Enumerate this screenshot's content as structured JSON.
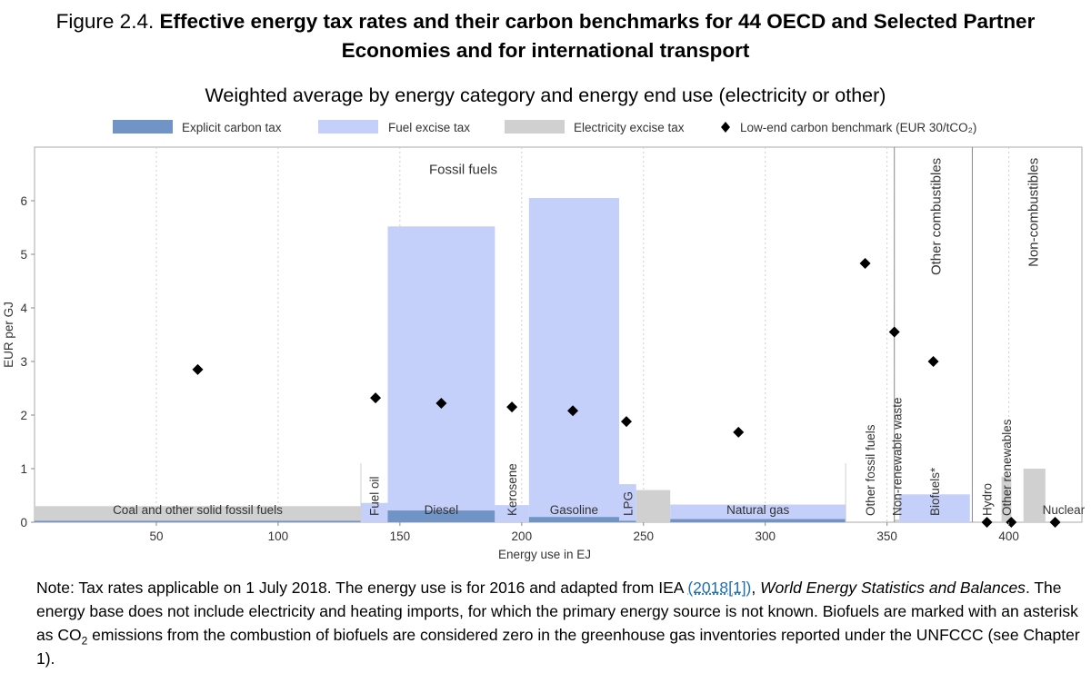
{
  "title": {
    "fig_label": "Figure 2.4.",
    "line1": "Effective energy tax rates and their carbon benchmarks for 44 OECD and Selected Partner",
    "line2": "Economies and for international transport"
  },
  "subtitle": "Weighted average by energy category and energy end use (electricity or other)",
  "colors": {
    "carbon": "#7094c6",
    "fuel": "#c4cffa",
    "elec": "#d0d0d0",
    "benchmark": "#000000",
    "frame": "#aaaaaa"
  },
  "chart_data": {
    "type": "bar",
    "xlabel": "Energy use in EJ",
    "ylabel": "EUR per GJ",
    "xlim": [
      0,
      430
    ],
    "ylim": [
      0,
      7
    ],
    "xticks": [
      50,
      100,
      150,
      200,
      250,
      300,
      350,
      400
    ],
    "yticks": [
      0,
      1,
      2,
      3,
      4,
      5,
      6
    ],
    "legend": {
      "placement": "top",
      "items": [
        {
          "key": "carbon",
          "label": "Explicit carbon tax"
        },
        {
          "key": "fuel",
          "label": "Fuel excise tax"
        },
        {
          "key": "elec",
          "label": "Electricity excise tax"
        },
        {
          "key": "benchmark",
          "label": "Low-end carbon benchmark (EUR 30/tCO₂)"
        }
      ]
    },
    "section_labels": [
      {
        "text": "Fossil fuels",
        "x": 176,
        "y": 6.5,
        "rotate": false
      },
      {
        "text": "Other combustibles",
        "x": 370,
        "y": 6.8,
        "rotate": true
      },
      {
        "text": "Non-combustibles",
        "x": 410,
        "y": 6.8,
        "rotate": true
      }
    ],
    "section_dividers": [
      353,
      385
    ],
    "bars": [
      {
        "label": "Coal and other solid fossil fuels",
        "x0": 0,
        "x1": 134,
        "carbon": 0.03,
        "fuel": 0.0,
        "elec": 0.27,
        "label_rotate": false
      },
      {
        "label": "Fuel oil",
        "x0": 134,
        "x1": 145,
        "carbon": 0.0,
        "fuel": 0.36,
        "elec": 0.0,
        "label_rotate": true
      },
      {
        "label": "Diesel",
        "x0": 145,
        "x1": 189,
        "carbon": 0.22,
        "fuel": 5.3,
        "elec": 0.0,
        "label_rotate": false
      },
      {
        "label": "Kerosene",
        "x0": 189,
        "x1": 203,
        "carbon": 0.0,
        "fuel": 0.32,
        "elec": 0.0,
        "label_rotate": true
      },
      {
        "label": "Gasoline",
        "x0": 203,
        "x1": 240,
        "carbon": 0.1,
        "fuel": 5.95,
        "elec": 0.0,
        "label_rotate": false
      },
      {
        "label": "LPG",
        "x0": 240,
        "x1": 247,
        "carbon": 0.03,
        "fuel": 0.68,
        "elec": 0.0,
        "label_rotate": true
      },
      {
        "label": "",
        "x0": 247,
        "x1": 261,
        "carbon": 0.0,
        "fuel": 0.0,
        "elec": 0.6,
        "label_rotate": false
      },
      {
        "label": "Natural gas",
        "x0": 261,
        "x1": 333,
        "carbon": 0.06,
        "fuel": 0.27,
        "elec": 0.0,
        "label_rotate": false
      },
      {
        "label": "Other fossil fuels",
        "x0": 333,
        "x1": 353,
        "carbon": 0.0,
        "fuel": 0.0,
        "elec": 0.0,
        "label_rotate": true
      },
      {
        "label": "Non-renewable waste",
        "x0": 353,
        "x1": 355,
        "carbon": 0.0,
        "fuel": 0.0,
        "elec": 0.05,
        "label_rotate": true
      },
      {
        "label": "Biofuels*",
        "x0": 355,
        "x1": 384,
        "carbon": 0.0,
        "fuel": 0.52,
        "elec": 0.0,
        "label_rotate": true
      },
      {
        "label": "Hydro",
        "x0": 385,
        "x1": 397,
        "carbon": 0.0,
        "fuel": 0.0,
        "elec": 0.0,
        "label_rotate": true
      },
      {
        "label": "Other renewables",
        "x0": 397,
        "x1": 401,
        "carbon": 0.0,
        "fuel": 0.0,
        "elec": 0.85,
        "label_rotate": true
      },
      {
        "label": "",
        "x0": 406,
        "x1": 415,
        "carbon": 0.0,
        "fuel": 0.0,
        "elec": 1.0,
        "label_rotate": false
      },
      {
        "label": "Nuclear",
        "x0": 415,
        "x1": 430,
        "carbon": 0.0,
        "fuel": 0.0,
        "elec": 0.0,
        "label_rotate": false
      }
    ],
    "benchmarks": [
      {
        "x": 67,
        "y": 2.85
      },
      {
        "x": 140,
        "y": 2.32
      },
      {
        "x": 167,
        "y": 2.22
      },
      {
        "x": 196,
        "y": 2.15
      },
      {
        "x": 221,
        "y": 2.08
      },
      {
        "x": 243,
        "y": 1.88
      },
      {
        "x": 289,
        "y": 1.68
      },
      {
        "x": 341,
        "y": 4.83
      },
      {
        "x": 353,
        "y": 3.55
      },
      {
        "x": 369,
        "y": 3.0
      },
      {
        "x": 391,
        "y": 0.0
      },
      {
        "x": 401,
        "y": 0.0
      },
      {
        "x": 419,
        "y": 0.0
      }
    ]
  },
  "note": {
    "p1": "Note: Tax rates applicable on 1 July 2018. The energy use is for 2016 and adapted from IEA ",
    "ref": "(2018[1])",
    "p2": ", ",
    "source": "World Energy Statistics and Balances",
    "p3": ". The energy base does not include electricity and heating imports, for which the primary energy source is not known. Biofuels are marked with an asterisk as CO",
    "sub": "2",
    "p4": " emissions from the combustion of biofuels are considered zero in the greenhouse gas inventories reported under the UNFCCC (see Chapter 1)."
  }
}
